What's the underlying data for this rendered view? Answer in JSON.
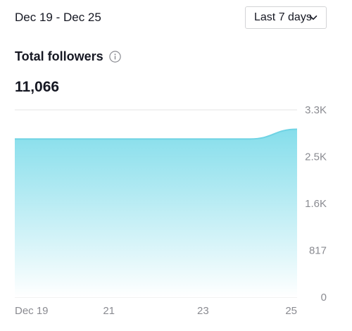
{
  "header": {
    "date_range": "Dec 19 - Dec 25",
    "range_select": {
      "label": "Last 7 days",
      "icon": "chevron-down-icon"
    }
  },
  "metric": {
    "title": "Total followers",
    "info_icon": "info-icon",
    "value": "11,066"
  },
  "chart_data": {
    "type": "area",
    "x": [
      "Dec 19",
      "Dec 20",
      "Dec 21",
      "Dec 22",
      "Dec 23",
      "Dec 24",
      "Dec 25"
    ],
    "values": [
      2760,
      2760,
      2760,
      2760,
      2760,
      2760,
      2930
    ],
    "x_tick_labels": [
      "Dec 19",
      "21",
      "23",
      "25"
    ],
    "y_ticks": [
      {
        "value": 0,
        "label": "0"
      },
      {
        "value": 817,
        "label": "817"
      },
      {
        "value": 1634,
        "label": "1.6K"
      },
      {
        "value": 2451,
        "label": "2.5K"
      },
      {
        "value": 3268,
        "label": "3.3K"
      }
    ],
    "ylim": [
      0,
      3268
    ],
    "grid": true,
    "y_axis_position": "right",
    "colors": {
      "line": "#6fd3e4",
      "fill_top": "#7fdcea",
      "fill_bottom": "#ffffff",
      "grid": "#e6e6e6",
      "tick_text": "#8a8b91"
    }
  }
}
